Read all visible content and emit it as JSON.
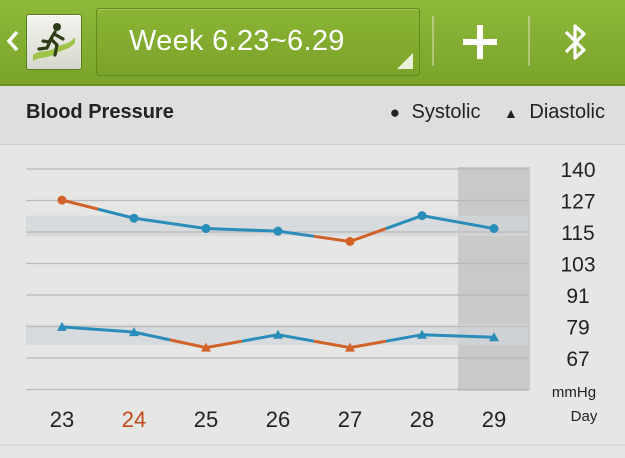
{
  "toolbar": {
    "back_icon": "chevron-left-icon",
    "app_icon": "runner-app-icon",
    "week_label": "Week 6.23~6.29",
    "add_icon": "plus-icon",
    "bluetooth_icon": "bluetooth-icon",
    "bar_color": "#7fab2d"
  },
  "header": {
    "title": "Blood Pressure",
    "legend": [
      {
        "symbol": "●",
        "label": "Systolic"
      },
      {
        "symbol": "▲",
        "label": "Diastolic"
      }
    ]
  },
  "chart_data": {
    "type": "line",
    "xlabel": "Day",
    "ylabel": "mmHg",
    "categories": [
      "23",
      "24",
      "25",
      "26",
      "27",
      "28",
      "29"
    ],
    "highlight_category": "24",
    "y_ticks": [
      "140",
      "127",
      "115",
      "103",
      "91",
      "79",
      "67"
    ],
    "ylim": [
      55,
      140
    ],
    "grid": true,
    "today_shaded": "29",
    "series": [
      {
        "name": "Systolic",
        "marker": "circle",
        "values": [
          128,
          121,
          117,
          116,
          112,
          122,
          117
        ]
      },
      {
        "name": "Diastolic",
        "marker": "triangle",
        "values": [
          79,
          77,
          71,
          76,
          71,
          76,
          75
        ]
      }
    ],
    "normal_color": "#2a8cb8",
    "out_of_range_color": "#d1622a"
  }
}
